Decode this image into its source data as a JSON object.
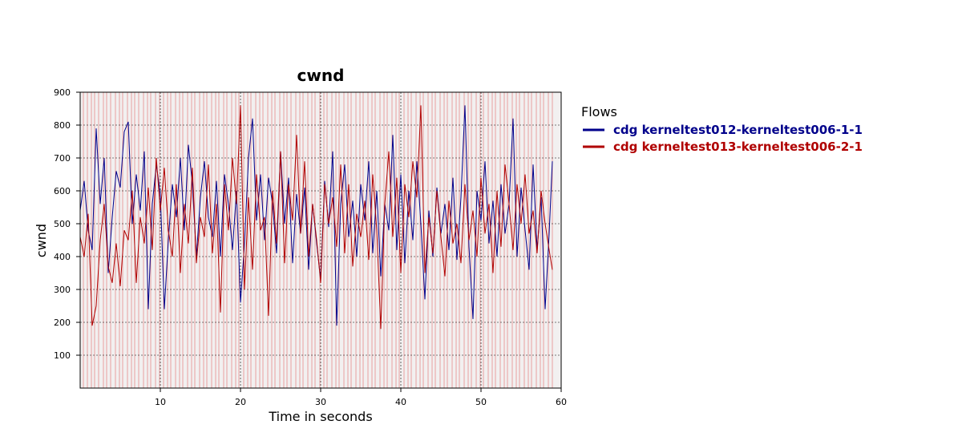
{
  "chart_data": {
    "type": "line",
    "title": "cwnd",
    "xlabel": "Time in seconds",
    "ylabel": "cwnd",
    "xlim": [
      0,
      60
    ],
    "ylim": [
      0,
      900
    ],
    "xticks": [
      10,
      20,
      30,
      40,
      50,
      60
    ],
    "yticks": [
      100,
      200,
      300,
      400,
      500,
      600,
      700,
      800,
      900
    ],
    "grid": true,
    "legend_title": "Flows",
    "legend_position": "right",
    "colors": {
      "background": "#f2f0f0",
      "grid": "#000000",
      "event_lines": "#e8a0a0"
    },
    "event_markers": [
      0.4,
      0.9,
      1.4,
      1.8,
      2.3,
      2.9,
      3.3,
      3.8,
      4.4,
      4.9,
      5.3,
      5.9,
      6.4,
      6.8,
      7.3,
      7.9,
      8.4,
      8.8,
      9.4,
      9.9,
      10.4,
      10.9,
      11.3,
      11.9,
      12.4,
      12.8,
      13.4,
      13.9,
      14.3,
      14.9,
      15.4,
      15.8,
      16.4,
      16.9,
      17.3,
      17.9,
      18.3,
      18.9,
      19.4,
      19.8,
      20.4,
      20.9,
      21.3,
      21.9,
      22.4,
      22.8,
      23.4,
      23.9,
      24.3,
      24.9,
      25.4,
      25.8,
      26.3,
      26.9,
      27.4,
      27.8,
      28.4,
      28.9,
      29.3,
      29.9,
      30.4,
      30.8,
      31.4,
      31.9,
      32.3,
      32.9,
      33.4,
      33.8,
      34.4,
      34.9,
      35.3,
      35.9,
      36.4,
      36.8,
      37.4,
      37.9,
      38.3,
      38.9,
      39.4,
      39.8,
      40.4,
      40.9,
      41.3,
      41.9,
      42.4,
      42.8,
      43.4,
      43.9,
      44.3,
      44.9,
      45.4,
      45.8,
      46.4,
      46.9,
      47.3,
      47.9,
      48.4,
      48.8,
      49.4,
      49.9,
      50.3,
      50.9,
      51.4,
      51.8,
      52.4,
      52.9,
      53.3,
      53.9,
      54.4,
      54.8,
      55.4,
      55.9,
      56.3,
      56.9,
      57.4,
      57.8,
      58.4,
      58.9
    ],
    "series": [
      {
        "name": "cdg kerneltest012-kerneltest006-1-1",
        "color": "#00008b",
        "x": [
          0.0,
          0.5,
          1.0,
          1.5,
          2.0,
          2.5,
          3.0,
          3.5,
          4.0,
          4.5,
          5.0,
          5.5,
          6.0,
          6.5,
          7.0,
          7.5,
          8.0,
          8.5,
          9.0,
          9.5,
          10.0,
          10.5,
          11.0,
          11.5,
          12.0,
          12.5,
          13.0,
          13.5,
          14.0,
          14.5,
          15.0,
          15.5,
          16.0,
          16.5,
          17.0,
          17.5,
          18.0,
          18.5,
          19.0,
          19.5,
          20.0,
          20.5,
          21.0,
          21.5,
          22.0,
          22.5,
          23.0,
          23.5,
          24.0,
          24.5,
          25.0,
          25.5,
          26.0,
          26.5,
          27.0,
          27.5,
          28.0,
          28.5,
          29.0,
          29.5,
          30.0,
          30.5,
          31.0,
          31.5,
          32.0,
          32.5,
          33.0,
          33.5,
          34.0,
          34.5,
          35.0,
          35.5,
          36.0,
          36.5,
          37.0,
          37.5,
          38.0,
          38.5,
          39.0,
          39.5,
          40.0,
          40.5,
          41.0,
          41.5,
          42.0,
          42.5,
          43.0,
          43.5,
          44.0,
          44.5,
          45.0,
          45.5,
          46.0,
          46.5,
          47.0,
          47.5,
          48.0,
          48.5,
          49.0,
          49.5,
          50.0,
          50.5,
          51.0,
          51.5,
          52.0,
          52.5,
          53.0,
          53.5,
          54.0,
          54.5,
          55.0,
          55.5,
          56.0,
          56.5,
          57.0,
          57.5,
          58.0,
          58.5,
          58.9
        ],
        "y": [
          540,
          630,
          480,
          420,
          790,
          560,
          700,
          350,
          520,
          660,
          610,
          780,
          810,
          500,
          650,
          540,
          720,
          240,
          560,
          680,
          590,
          240,
          450,
          620,
          520,
          700,
          480,
          740,
          620,
          400,
          580,
          690,
          520,
          460,
          630,
          400,
          650,
          560,
          420,
          600,
          260,
          440,
          700,
          820,
          510,
          650,
          450,
          640,
          560,
          410,
          720,
          500,
          640,
          380,
          590,
          470,
          610,
          360,
          560,
          440,
          330,
          630,
          490,
          720,
          190,
          560,
          680,
          460,
          570,
          400,
          620,
          510,
          690,
          410,
          600,
          340,
          560,
          480,
          770,
          420,
          650,
          380,
          600,
          450,
          690,
          500,
          270,
          540,
          400,
          610,
          470,
          560,
          420,
          640,
          390,
          580,
          860,
          430,
          210,
          600,
          510,
          690,
          440,
          570,
          400,
          620,
          470,
          560,
          820,
          400,
          610,
          480,
          360,
          680,
          420,
          580,
          240,
          470,
          690
        ]
      },
      {
        "name": "cdg kerneltest013-kerneltest006-2-1",
        "color": "#b00000",
        "x": [
          0.0,
          0.5,
          1.0,
          1.5,
          2.0,
          2.5,
          3.0,
          3.5,
          4.0,
          4.5,
          5.0,
          5.5,
          6.0,
          6.5,
          7.0,
          7.5,
          8.0,
          8.5,
          9.0,
          9.5,
          10.0,
          10.5,
          11.0,
          11.5,
          12.0,
          12.5,
          13.0,
          13.5,
          14.0,
          14.5,
          15.0,
          15.5,
          16.0,
          16.5,
          17.0,
          17.5,
          18.0,
          18.5,
          19.0,
          19.5,
          20.0,
          20.5,
          21.0,
          21.5,
          22.0,
          22.5,
          23.0,
          23.5,
          24.0,
          24.5,
          25.0,
          25.5,
          26.0,
          26.5,
          27.0,
          27.5,
          28.0,
          28.5,
          29.0,
          29.5,
          30.0,
          30.5,
          31.0,
          31.5,
          32.0,
          32.5,
          33.0,
          33.5,
          34.0,
          34.5,
          35.0,
          35.5,
          36.0,
          36.5,
          37.0,
          37.5,
          38.0,
          38.5,
          39.0,
          39.5,
          40.0,
          40.5,
          41.0,
          41.5,
          42.0,
          42.5,
          43.0,
          43.5,
          44.0,
          44.5,
          45.0,
          45.5,
          46.0,
          46.5,
          47.0,
          47.5,
          48.0,
          48.5,
          49.0,
          49.5,
          50.0,
          50.5,
          51.0,
          51.5,
          52.0,
          52.5,
          53.0,
          53.5,
          54.0,
          54.5,
          55.0,
          55.5,
          56.0,
          56.5,
          57.0,
          57.5,
          58.0,
          58.5,
          58.9
        ],
        "y": [
          460,
          400,
          530,
          190,
          250,
          450,
          560,
          370,
          320,
          440,
          310,
          480,
          450,
          600,
          320,
          520,
          440,
          610,
          420,
          700,
          540,
          670,
          480,
          400,
          620,
          350,
          560,
          440,
          670,
          380,
          520,
          460,
          680,
          410,
          560,
          230,
          620,
          480,
          700,
          560,
          860,
          300,
          580,
          360,
          650,
          480,
          520,
          220,
          600,
          440,
          720,
          380,
          620,
          510,
          770,
          470,
          690,
          400,
          560,
          450,
          320,
          620,
          500,
          580,
          430,
          680,
          410,
          620,
          370,
          530,
          460,
          570,
          390,
          650,
          480,
          180,
          560,
          720,
          460,
          640,
          350,
          620,
          520,
          690,
          580,
          860,
          350,
          520,
          410,
          600,
          460,
          340,
          570,
          440,
          500,
          380,
          620,
          450,
          540,
          400,
          640,
          470,
          560,
          350,
          600,
          430,
          680,
          560,
          420,
          620,
          500,
          650,
          470,
          540,
          410,
          600,
          500,
          420,
          360
        ]
      }
    ]
  }
}
